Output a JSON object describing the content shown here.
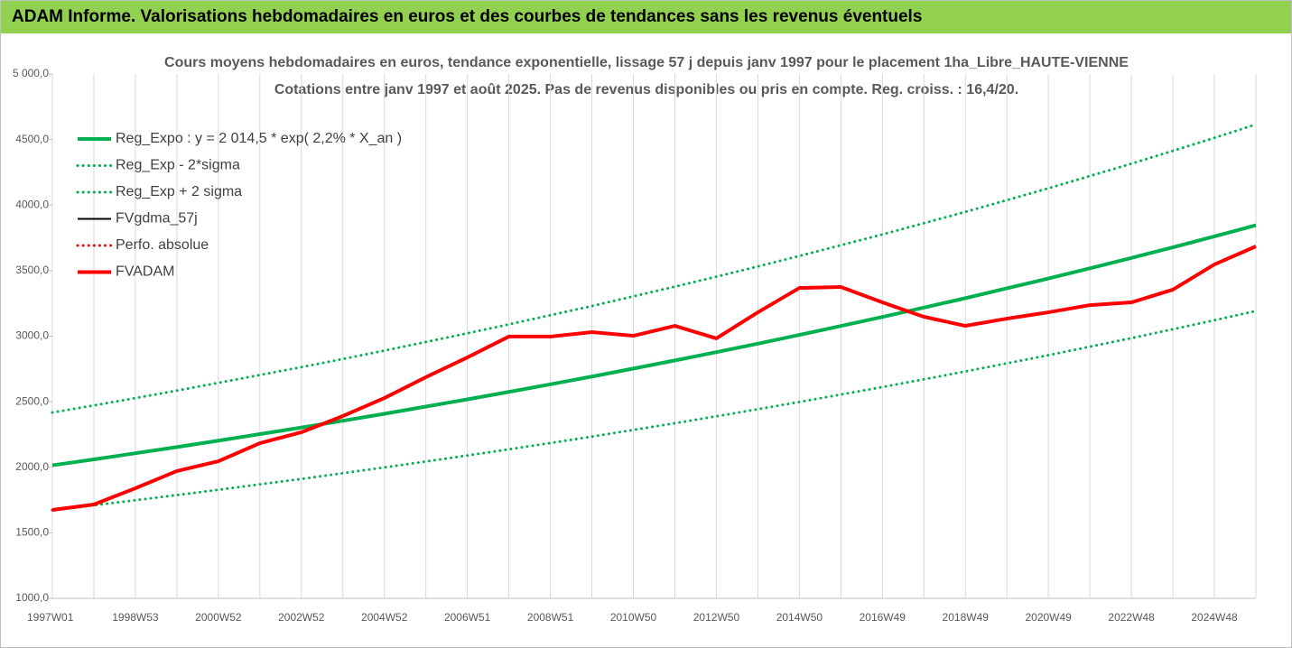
{
  "header": {
    "title": "ADAM Informe. Valorisations hebdomadaires en euros et des courbes de tendances sans les revenus éventuels"
  },
  "chart_data": {
    "type": "line",
    "title": "Cours moyens hebdomadaires en euros, tendance exponentielle, lissage 57 j depuis janv 1997 pour le placement 1ha_Libre_HAUTE-VIENNE",
    "subtitle": "Cotations entre janv 1997 et août 2025. Pas de revenus disponibles ou pris en compte. Reg. croiss. : 16,4/20.",
    "categories": [
      "1997W01",
      null,
      "1998W53",
      null,
      "2000W52",
      null,
      "2002W52",
      null,
      "2004W52",
      null,
      "2006W51",
      null,
      "2008W51",
      null,
      "2010W50",
      null,
      "2012W50",
      null,
      "2014W50",
      null,
      "2016W49",
      null,
      "2018W49",
      null,
      "2020W49",
      null,
      "2022W48",
      null,
      "2024W48",
      null
    ],
    "ylim": [
      1000,
      5000
    ],
    "yticks": [
      {
        "value": 1000,
        "label": "1000,0"
      },
      {
        "value": 1500,
        "label": "1500,0"
      },
      {
        "value": 2000,
        "label": "2000,0"
      },
      {
        "value": 2500,
        "label": "2500,0"
      },
      {
        "value": 3000,
        "label": "3000,0"
      },
      {
        "value": 3500,
        "label": "3500,0"
      },
      {
        "value": 4000,
        "label": "4000,0"
      },
      {
        "value": 4500,
        "label": "4500,0"
      },
      {
        "value": 5000,
        "label": "5 000,0"
      }
    ],
    "grid": true,
    "legend": "top-left",
    "series": [
      {
        "name": "Reg_Expo : y = 2 014,5 * exp( 2,2% *  X_an )",
        "color": "#00b050",
        "style": "solid",
        "values": [
          2015,
          2060,
          2107,
          2154,
          2203,
          2253,
          2303,
          2355,
          2408,
          2463,
          2518,
          2575,
          2633,
          2692,
          2753,
          2815,
          2878,
          2943,
          3010,
          3078,
          3147,
          3218,
          3290,
          3365,
          3440,
          3518,
          3597,
          3678,
          3761,
          3846
        ]
      },
      {
        "name": "Reg_Exp - 2*sigma",
        "color": "#00b050",
        "style": "dotted",
        "values": [
          1672,
          1710,
          1749,
          1788,
          1828,
          1870,
          1911,
          1955,
          1999,
          2044,
          2090,
          2137,
          2185,
          2234,
          2285,
          2336,
          2389,
          2443,
          2498,
          2555,
          2612,
          2671,
          2731,
          2793,
          2855,
          2920,
          2985,
          3053,
          3122,
          3192
        ]
      },
      {
        "name": "Reg_Exp + 2 sigma",
        "color": "#00b050",
        "style": "dotted",
        "values": [
          2418,
          2472,
          2528,
          2585,
          2644,
          2704,
          2764,
          2826,
          2890,
          2956,
          3022,
          3090,
          3160,
          3230,
          3304,
          3378,
          3454,
          3532,
          3612,
          3694,
          3776,
          3862,
          3948,
          4038,
          4128,
          4222,
          4316,
          4414,
          4513,
          4615
        ]
      },
      {
        "name": "FVgdma_57j",
        "color": "#000000",
        "style": "thin",
        "values": [
          1675,
          1716,
          1840,
          1971,
          2046,
          2184,
          2267,
          2391,
          2528,
          2687,
          2838,
          2997,
          2997,
          3031,
          3003,
          3079,
          2983,
          3182,
          3368,
          3375,
          3258,
          3148,
          3079,
          3134,
          3182,
          3237,
          3258,
          3355,
          3547,
          3685
        ]
      },
      {
        "name": "Perfo. absolue",
        "color": "#ff0000",
        "style": "dotted",
        "values": [
          1675,
          1716,
          1840,
          1971,
          2046,
          2184,
          2267,
          2391,
          2528,
          2687,
          2838,
          2997,
          2997,
          3031,
          3003,
          3079,
          2983,
          3182,
          3368,
          3375,
          3258,
          3148,
          3079,
          3134,
          3182,
          3237,
          3258,
          3355,
          3547,
          3685
        ]
      },
      {
        "name": "FVADAM",
        "color": "#ff0000",
        "style": "solid",
        "values": [
          1675,
          1716,
          1840,
          1971,
          2046,
          2184,
          2267,
          2391,
          2528,
          2687,
          2838,
          2997,
          2997,
          3031,
          3003,
          3079,
          2983,
          3182,
          3368,
          3375,
          3258,
          3148,
          3079,
          3134,
          3182,
          3237,
          3258,
          3355,
          3547,
          3685
        ]
      }
    ]
  }
}
